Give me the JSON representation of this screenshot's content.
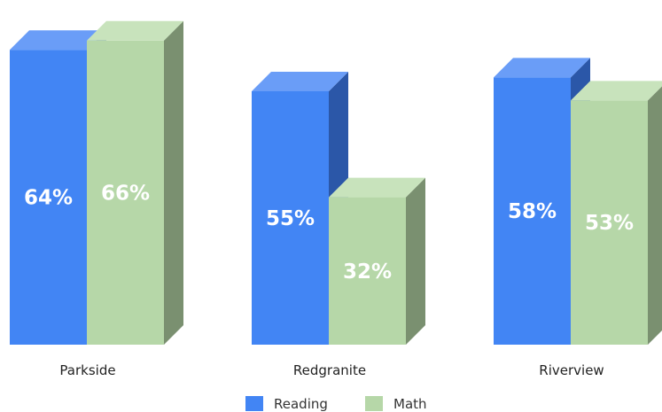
{
  "chart_data": {
    "type": "bar",
    "style": "3d-clustered-column",
    "categories": [
      "Parkside",
      "Redgranite",
      "Riverview"
    ],
    "series": [
      {
        "name": "Reading",
        "values": [
          64,
          55,
          58
        ],
        "labels": [
          "64%",
          "55%",
          "58%"
        ],
        "color": "#4285f4",
        "top_color": "#6a9df7",
        "side_color": "#2b57a8"
      },
      {
        "name": "Math",
        "values": [
          66,
          32,
          53
        ],
        "labels": [
          "66%",
          "32%",
          "53%"
        ],
        "color": "#b6d7a8",
        "top_color": "#c8e3bc",
        "side_color": "#7a9070"
      }
    ],
    "value_unit": "%",
    "ylim": [
      0,
      70
    ],
    "grid": false,
    "legend": "bottom",
    "title": "",
    "xlabel": "",
    "ylabel": ""
  }
}
